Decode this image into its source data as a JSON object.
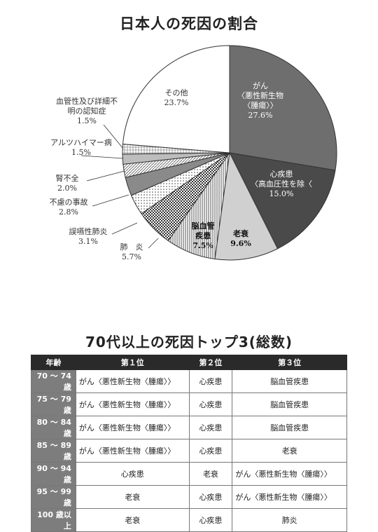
{
  "chart_data": {
    "type": "pie",
    "title": "日本人の死因の割合",
    "slices": [
      {
        "label": "がん\n〈悪性新生物\n〈腫瘍〉〉",
        "value": 27.6,
        "value_label": "27.6%",
        "color": "#6e6e6e"
      },
      {
        "label": "心疾患\n〈高血圧性を除〈",
        "value": 15.0,
        "value_label": "15.0%",
        "color": "#4a4a4a"
      },
      {
        "label": "老衰",
        "value": 9.6,
        "value_label": "9.6%",
        "color": "#d0d0d0"
      },
      {
        "label": "脳血管\n疾患",
        "value": 7.5,
        "value_label": "7.5%",
        "color": "#ffffff",
        "pattern": "vlines"
      },
      {
        "label": "肺　炎",
        "value": 5.7,
        "value_label": "5.7%",
        "color": "#ffffff",
        "pattern": "check"
      },
      {
        "label": "誤嚥性肺炎",
        "value": 3.1,
        "value_label": "3.1%",
        "color": "#ffffff",
        "pattern": "dots"
      },
      {
        "label": "不慮の事故",
        "value": 2.8,
        "value_label": "2.8%",
        "color": "#8a8a8a"
      },
      {
        "label": "腎不全",
        "value": 2.0,
        "value_label": "2.0%",
        "color": "#ffffff",
        "pattern": "diag"
      },
      {
        "label": "アルツハイマー病",
        "value": 1.5,
        "value_label": "1.5%",
        "color": "#bdbdbd"
      },
      {
        "label": "血管性及び詳細不\n明の認知症",
        "value": 1.5,
        "value_label": "1.5%",
        "color": "#ffffff",
        "pattern": "grid"
      },
      {
        "label": "その他",
        "value": 23.7,
        "value_label": "23.7%",
        "color": "#ffffff"
      }
    ]
  },
  "table": {
    "title": "70代以上の死因トップ3(総数)",
    "headers": [
      "年齢",
      "第１位",
      "第２位",
      "第３位"
    ],
    "rows": [
      [
        "70 〜 74 歳",
        "がん〈悪性新生物〈腫瘍〉〉",
        "心疾患",
        "脳血管疾患"
      ],
      [
        "75 〜 79 歳",
        "がん〈悪性新生物〈腫瘍〉〉",
        "心疾患",
        "脳血管疾患"
      ],
      [
        "80 〜 84 歳",
        "がん〈悪性新生物〈腫瘍〉〉",
        "心疾患",
        "脳血管疾患"
      ],
      [
        "85 〜 89 歳",
        "がん〈悪性新生物〈腫瘍〉〉",
        "心疾患",
        "老衰"
      ],
      [
        "90 〜 94 歳",
        "心疾患",
        "老衰",
        "がん〈悪性新生物〈腫瘍〉〉"
      ],
      [
        "95 〜 99 歳",
        "老衰",
        "心疾患",
        "がん〈悪性新生物〈腫瘍〉〉"
      ],
      [
        "100 歳以上",
        "老衰",
        "心疾患",
        "肺炎"
      ]
    ]
  }
}
